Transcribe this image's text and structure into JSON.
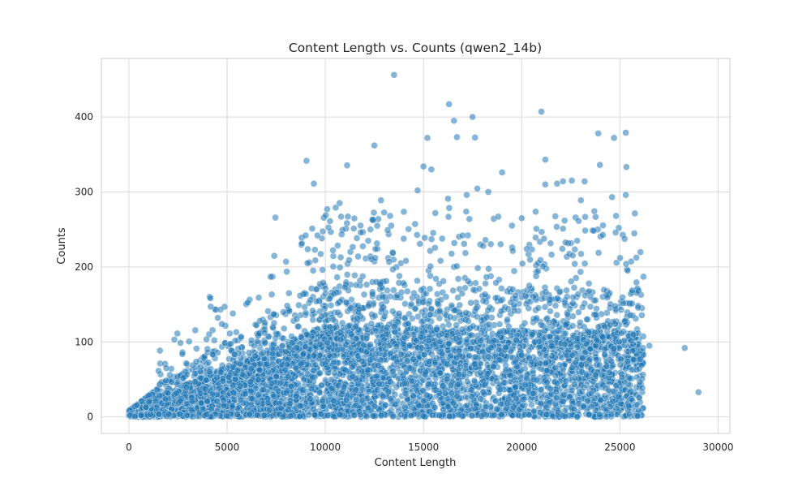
{
  "chart_data": {
    "type": "scatter",
    "title": "Content Length vs. Counts (qwen2_14b)",
    "xlabel": "Content Length",
    "ylabel": "Counts",
    "xlim": [
      -1400,
      30600
    ],
    "ylim": [
      -22,
      478
    ],
    "xticks": [
      0,
      5000,
      10000,
      15000,
      20000,
      25000,
      30000
    ],
    "yticks": [
      0,
      100,
      200,
      300,
      400
    ],
    "grid": true,
    "legend": "none",
    "point_color": "#1f77b4",
    "point_alpha": 0.55,
    "outliers": [
      [
        13500,
        456
      ],
      [
        16300,
        417
      ],
      [
        17500,
        400
      ],
      [
        21000,
        407
      ],
      [
        16700,
        373
      ],
      [
        15200,
        372
      ],
      [
        12500,
        362
      ],
      [
        23900,
        378
      ],
      [
        25300,
        379
      ],
      [
        24700,
        372
      ],
      [
        15000,
        334
      ],
      [
        15400,
        330
      ],
      [
        19000,
        326
      ],
      [
        23200,
        314
      ],
      [
        21200,
        310
      ],
      [
        21800,
        311
      ],
      [
        14700,
        302
      ],
      [
        17200,
        296
      ],
      [
        18300,
        300
      ],
      [
        25300,
        296
      ],
      [
        24600,
        293
      ],
      [
        10100,
        277
      ],
      [
        13300,
        268
      ],
      [
        28300,
        92
      ],
      [
        29000,
        33
      ],
      [
        26500,
        95
      ],
      [
        26200,
        187
      ],
      [
        8800,
        239
      ],
      [
        9000,
        242
      ],
      [
        9600,
        242
      ],
      [
        8000,
        207
      ],
      [
        11800,
        246
      ],
      [
        12300,
        250
      ],
      [
        20000,
        265
      ]
    ],
    "bulk_points": {
      "count": 5200,
      "note": "dense cloud; x roughly uniform 0-26500, y mostly below 150"
    }
  }
}
